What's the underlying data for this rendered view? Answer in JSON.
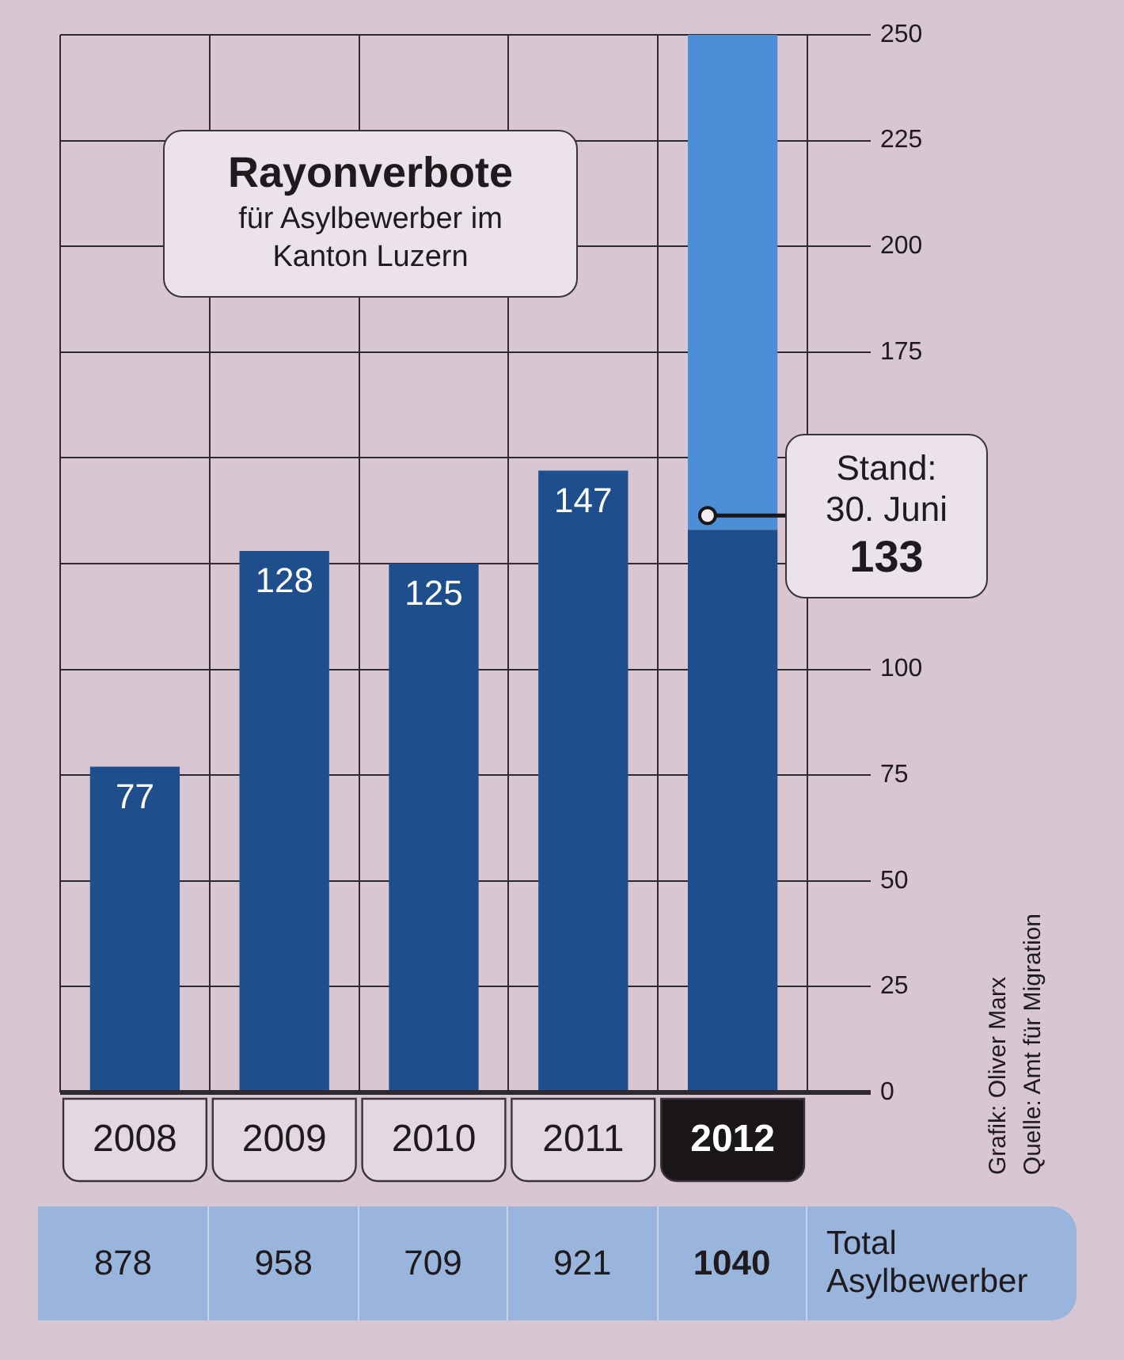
{
  "chart_data": [
    {
      "type": "bar",
      "title": "Rayonverbote",
      "subtitle": "für Asylbewerber im Kanton Luzern",
      "categories": [
        "2008",
        "2009",
        "2010",
        "2011",
        "2012"
      ],
      "series": [
        {
          "color": "#1f4e8c",
          "values": [
            77,
            128,
            125,
            147,
            133
          ],
          "value_labels": [
            "77",
            "128",
            "125",
            "147",
            "133"
          ]
        },
        {
          "color": "#4d8fd6",
          "values": [
            null,
            null,
            null,
            null,
            117
          ]
        }
      ],
      "stacked": true,
      "ylim": [
        0,
        250
      ],
      "yticks": [
        0,
        25,
        50,
        75,
        100,
        {
          "value": 125,
          "label": null
        },
        {
          "value": 150,
          "label": null
        },
        175,
        200,
        225,
        250
      ],
      "grid": true,
      "annotations": [
        {
          "text": "Stand: 30. Juni",
          "x": "2012",
          "y": 133
        },
        "Grafik: Oliver Marx",
        "Quelle: Amt für Migration"
      ]
    },
    {
      "type": "other",
      "data_labels": true,
      "series": [
        {
          "name": "Total Asylbewerber",
          "values": [
            878,
            958,
            709,
            921,
            1040
          ]
        }
      ]
    }
  ]
}
